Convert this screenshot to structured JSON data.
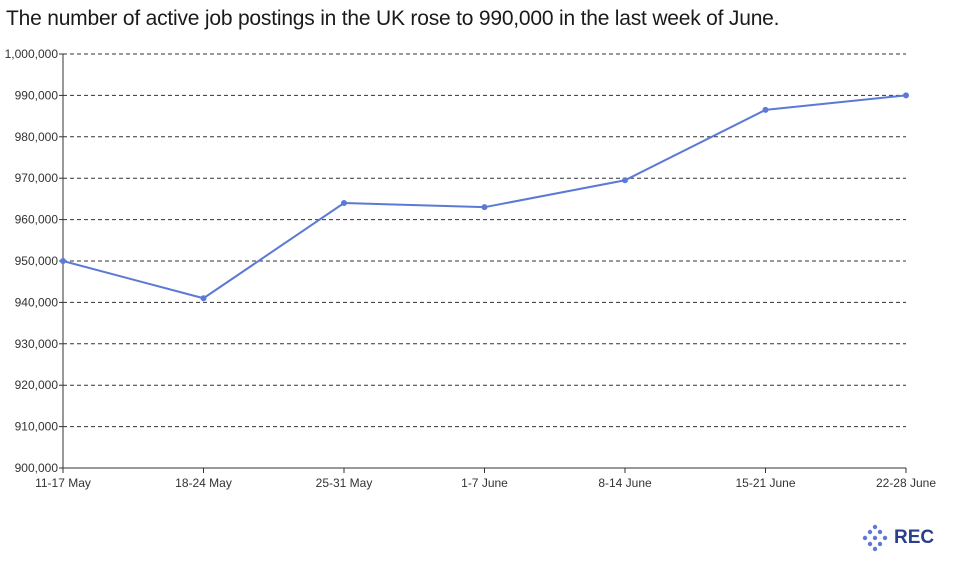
{
  "chart_data": {
    "type": "line",
    "title": "The number of active job postings in the UK rose to 990,000 in the last week of June.",
    "categories": [
      "11-17 May",
      "18-24 May",
      "25-31 May",
      "1-7 June",
      "8-14 June",
      "15-21 June",
      "22-28 June"
    ],
    "series": [
      {
        "values": [
          950000,
          941000,
          964000,
          963000,
          969500,
          986500,
          990000
        ]
      }
    ],
    "ylim": [
      900000,
      1000000
    ],
    "yticks": [
      "900,000",
      "910,000",
      "920,000",
      "930,000",
      "940,000",
      "950,000",
      "960,000",
      "970,000",
      "980,000",
      "990,000",
      "1,000,000"
    ],
    "grid": true,
    "line_color": "#5b79d6"
  },
  "branding": {
    "logo_text": "REC",
    "logo_icon": "rec-logo-icon",
    "logo_color": "#2b3f8c"
  }
}
